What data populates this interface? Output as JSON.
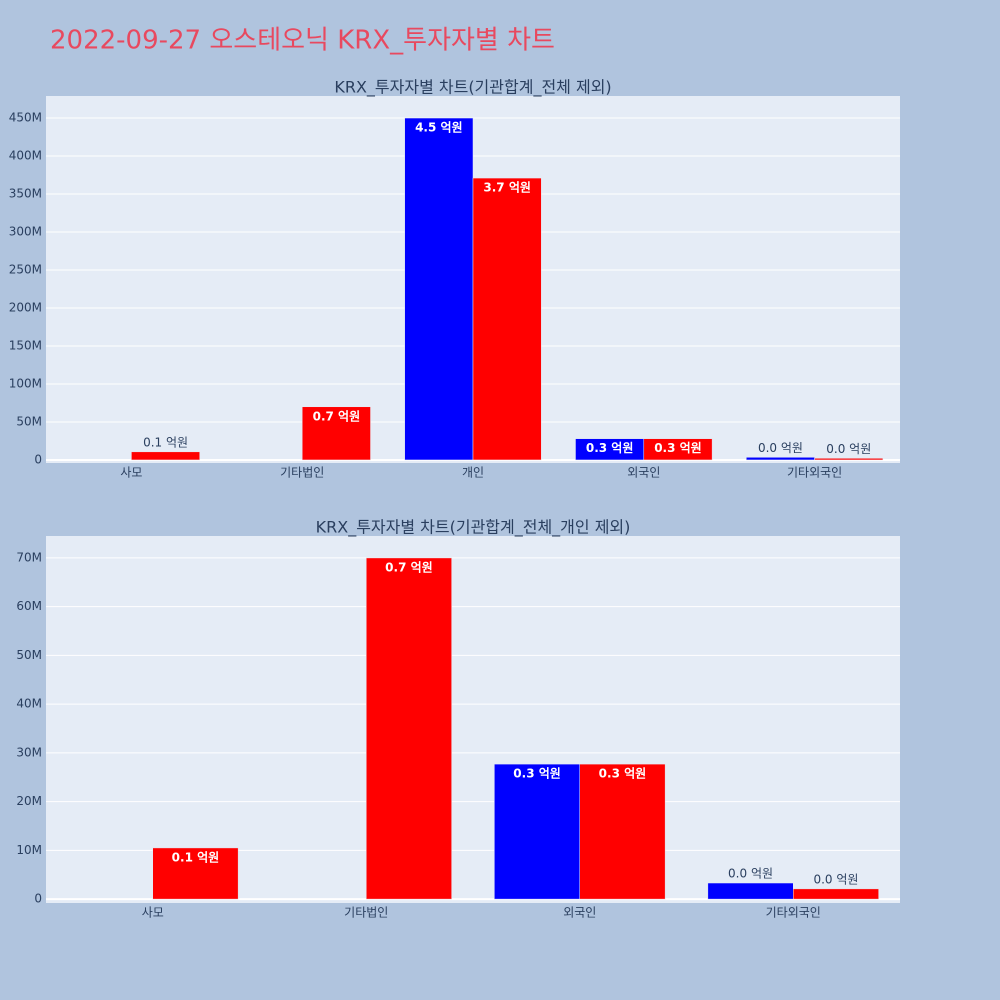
{
  "title": "2022-09-27 오스테오닉 KRX_투자자별 차트",
  "chart_data": [
    {
      "type": "bar",
      "title": "KRX_투자자별 차트(기관합계_전체 제외)",
      "categories": [
        "사모",
        "기타법인",
        "개인",
        "외국인",
        "기타외국인"
      ],
      "series": [
        {
          "color": "blue",
          "values": [
            null,
            null,
            450000000,
            28000000,
            3500000
          ],
          "value_labels": [
            null,
            null,
            "4.5 억원",
            "0.3 억원",
            "0.0 억원"
          ]
        },
        {
          "color": "red",
          "values": [
            10700000,
            70000000,
            371000000,
            28000000,
            2200000
          ],
          "value_labels": [
            "0.1 억원",
            "0.7 억원",
            "3.7 억원",
            "0.3 억원",
            "0.0 억원"
          ]
        }
      ],
      "ylim": [
        -4000000,
        479000000
      ],
      "yticks": [
        {
          "value": 0,
          "label": "0"
        },
        {
          "value": 50000000,
          "label": "50M"
        },
        {
          "value": 100000000,
          "label": "100M"
        },
        {
          "value": 150000000,
          "label": "150M"
        },
        {
          "value": 200000000,
          "label": "200M"
        },
        {
          "value": 250000000,
          "label": "250M"
        },
        {
          "value": 300000000,
          "label": "300M"
        },
        {
          "value": 350000000,
          "label": "350M"
        },
        {
          "value": 400000000,
          "label": "400M"
        },
        {
          "value": 450000000,
          "label": "450M"
        }
      ],
      "grid": true
    },
    {
      "type": "bar",
      "title": "KRX_투자자별 차트(기관합계_전체_개인 제외)",
      "categories": [
        "사모",
        "기타법인",
        "외국인",
        "기타외국인"
      ],
      "series": [
        {
          "color": "blue",
          "values": [
            null,
            null,
            27700000,
            3300000
          ],
          "value_labels": [
            null,
            null,
            "0.3 억원",
            "0.0 억원"
          ]
        },
        {
          "color": "red",
          "values": [
            10500000,
            70000000,
            27700000,
            2100000
          ],
          "value_labels": [
            "0.1 억원",
            "0.7 억원",
            "0.3 억원",
            "0.0 억원"
          ]
        }
      ],
      "ylim": [
        -800000,
        74500000
      ],
      "yticks": [
        {
          "value": 0,
          "label": "0"
        },
        {
          "value": 10000000,
          "label": "10M"
        },
        {
          "value": 20000000,
          "label": "20M"
        },
        {
          "value": 30000000,
          "label": "30M"
        },
        {
          "value": 40000000,
          "label": "40M"
        },
        {
          "value": 50000000,
          "label": "50M"
        },
        {
          "value": 60000000,
          "label": "60M"
        },
        {
          "value": 70000000,
          "label": "70M"
        }
      ],
      "grid": true
    }
  ]
}
